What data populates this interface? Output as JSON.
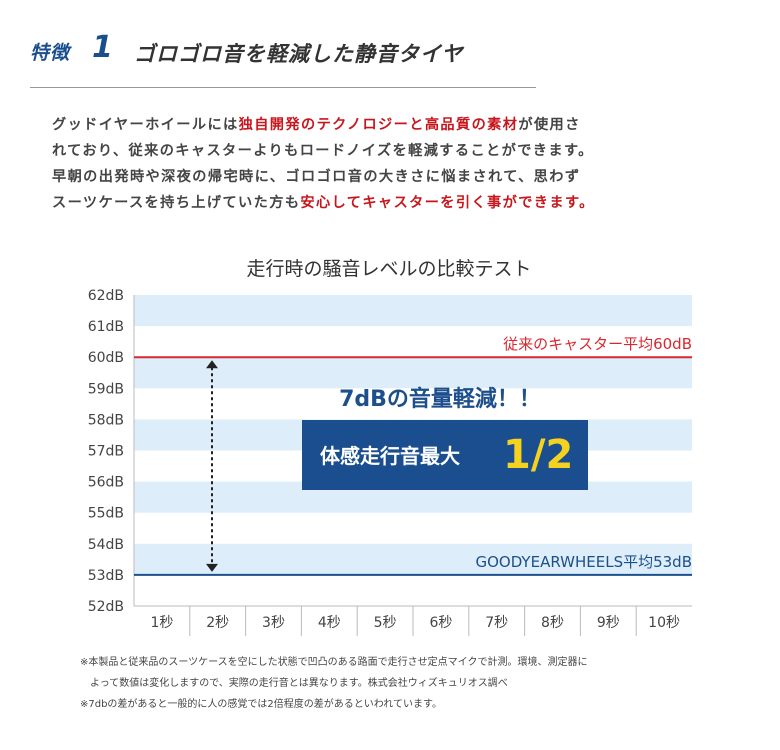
{
  "feature": {
    "tag": "特徴",
    "number": "1",
    "title": "ゴロゴロ音を軽減した静音タイヤ"
  },
  "intro": {
    "lines": [
      [
        {
          "text": "グッドイヤーホイールには",
          "highlight": false
        },
        {
          "text": "独自開発のテクノロジーと高品質の素材",
          "highlight": true
        },
        {
          "text": "が使用さ",
          "highlight": false
        }
      ],
      [
        {
          "text": "れており、従来のキャスターよりもロードノイズを軽減することができます。",
          "highlight": false
        }
      ],
      [
        {
          "text": "早朝の出発時や深夜の帰宅時に、ゴロゴロ音の大きさに悩まされて、思わず",
          "highlight": false
        }
      ],
      [
        {
          "text": "スーツケースを持ち上げていた方も",
          "highlight": false
        },
        {
          "text": "安心してキャスターを引く事ができます。",
          "highlight": true
        }
      ]
    ]
  },
  "chart_data": {
    "type": "line",
    "title": "走行時の騒音レベルの比較テスト",
    "categories": [
      "1秒",
      "2秒",
      "3秒",
      "4秒",
      "5秒",
      "6秒",
      "7秒",
      "8秒",
      "9秒",
      "10秒"
    ],
    "y_ticks": [
      "52dB",
      "53dB",
      "54dB",
      "55dB",
      "56dB",
      "57dB",
      "58dB",
      "59dB",
      "60dB",
      "61dB",
      "62dB"
    ],
    "ylim": [
      52,
      62
    ],
    "y_unit": "dB",
    "series": [
      {
        "name": "従来のキャスター平均60dB",
        "values": [
          60,
          60,
          60,
          60,
          60,
          60,
          60,
          60,
          60,
          60
        ],
        "color": "#d9282f"
      },
      {
        "name": "GOODYEARWHEELS平均53dB",
        "values": [
          53,
          53,
          53,
          53,
          53,
          53,
          53,
          53,
          53,
          53
        ],
        "color": "#1c4f8c"
      }
    ],
    "annotations": {
      "reduction": "7dBの音量軽減！！",
      "box_text": "体感走行音最大",
      "box_value": "1/2"
    },
    "colors": {
      "band": "#ddeefa",
      "annotation_text": "#1c4f8c",
      "box_fill": "#1a4e8f",
      "box_value": "#f5d21f"
    }
  },
  "notes": [
    "※本製品と従来品のスーツケースを空にした状態で凹凸のある路面で走行させ定点マイクで計測。環境、測定器に",
    "　よって数値は変化しますので、実際の走行音とは異なります。株式会社ウィズキュリオス調べ",
    "※7dbの差があると一般的に人の感覚では2倍程度の差があるといわれています。"
  ]
}
